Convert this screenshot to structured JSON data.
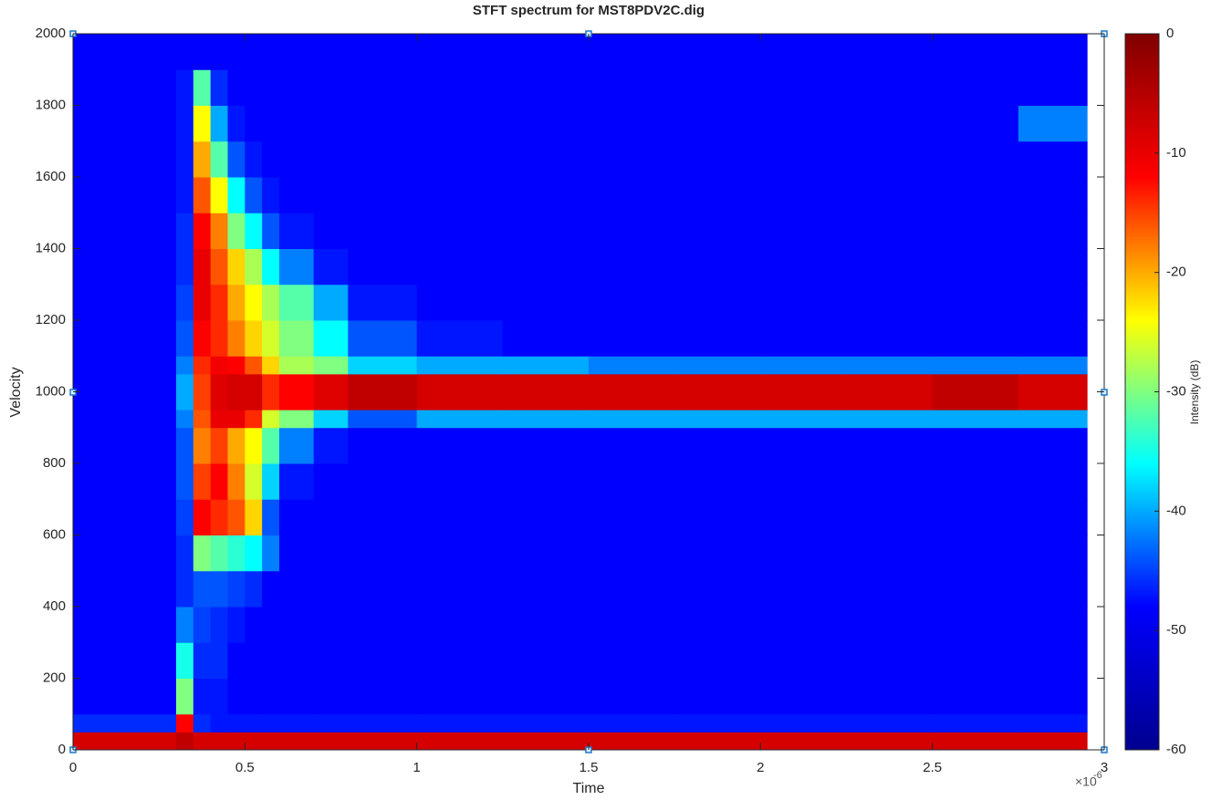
{
  "chart_data": {
    "type": "heatmap",
    "title": "STFT spectrum for MST8PDV2C.dig",
    "x_label": "Time",
    "y_label": "Velocity",
    "x_exponent": {
      "base": "×10",
      "power": "-6"
    },
    "xlim": [
      0,
      3
    ],
    "xticks": [
      0,
      0.5,
      1,
      1.5,
      2,
      2.5,
      3
    ],
    "ylim": [
      0,
      2000
    ],
    "yticks": [
      0,
      200,
      400,
      600,
      800,
      1000,
      1200,
      1400,
      1600,
      1800,
      2000
    ],
    "xbins": [
      0,
      0.3,
      0.35,
      0.4,
      0.45,
      0.5,
      0.55,
      0.6,
      0.7,
      0.8,
      1.0,
      1.25,
      1.5,
      1.75,
      2.0,
      2.25,
      2.5,
      2.75,
      2.95
    ],
    "ybins": [
      0,
      50,
      100,
      200,
      300,
      400,
      500,
      600,
      700,
      800,
      900,
      950,
      1050,
      1100,
      1200,
      1300,
      1400,
      1500,
      1600,
      1700,
      1800,
      1900,
      2000
    ],
    "z": [
      [
        -8,
        -6,
        -8,
        -8,
        -8,
        -8,
        -8,
        -8,
        -8,
        -8,
        -8,
        -8,
        -8,
        -8,
        -8,
        -8,
        -8,
        -8
      ],
      [
        -46,
        -12,
        -46,
        -47,
        -47,
        -47,
        -47,
        -47,
        -47,
        -47,
        -47,
        -47,
        -47,
        -47,
        -47,
        -47,
        -47,
        -47
      ],
      [
        -48,
        -30,
        -47,
        -47,
        -48,
        -48,
        -48,
        -48,
        -48,
        -48,
        -48,
        -48,
        -48,
        -48,
        -48,
        -48,
        -48,
        -48
      ],
      [
        -48,
        -35,
        -46,
        -46,
        -48,
        -48,
        -48,
        -48,
        -48,
        -48,
        -48,
        -48,
        -48,
        -48,
        -48,
        -48,
        -48,
        -48
      ],
      [
        -48,
        -42,
        -45,
        -46,
        -47,
        -48,
        -48,
        -48,
        -48,
        -48,
        -48,
        -48,
        -48,
        -48,
        -48,
        -48,
        -48,
        -48
      ],
      [
        -48,
        -46,
        -44,
        -44,
        -45,
        -46,
        -48,
        -48,
        -48,
        -48,
        -48,
        -48,
        -48,
        -48,
        -48,
        -48,
        -48,
        -48
      ],
      [
        -48,
        -46,
        -30,
        -32,
        -34,
        -36,
        -42,
        -48,
        -48,
        -48,
        -48,
        -48,
        -48,
        -48,
        -48,
        -48,
        -48,
        -48
      ],
      [
        -48,
        -45,
        -12,
        -14,
        -16,
        -22,
        -44,
        -48,
        -48,
        -48,
        -48,
        -48,
        -48,
        -48,
        -48,
        -48,
        -48,
        -48
      ],
      [
        -48,
        -44,
        -15,
        -12,
        -18,
        -26,
        -38,
        -47,
        -48,
        -48,
        -48,
        -48,
        -48,
        -48,
        -48,
        -48,
        -48,
        -48
      ],
      [
        -48,
        -44,
        -18,
        -15,
        -20,
        -24,
        -32,
        -42,
        -47,
        -48,
        -48,
        -48,
        -48,
        -48,
        -48,
        -48,
        -48,
        -48
      ],
      [
        -48,
        -42,
        -16,
        -10,
        -10,
        -14,
        -26,
        -30,
        -38,
        -44,
        -40,
        -40,
        -40,
        -40,
        -40,
        -40,
        -40,
        -40
      ],
      [
        -48,
        -40,
        -15,
        -9,
        -8,
        -8,
        -14,
        -12,
        -9,
        -6,
        -8,
        -8,
        -8,
        -8,
        -8,
        -8,
        -6,
        -8
      ],
      [
        -48,
        -42,
        -14,
        -11,
        -12,
        -16,
        -22,
        -28,
        -30,
        -38,
        -40,
        -40,
        -42,
        -42,
        -42,
        -42,
        -42,
        -42
      ],
      [
        -48,
        -44,
        -12,
        -14,
        -18,
        -22,
        -26,
        -30,
        -36,
        -44,
        -47,
        -48,
        -48,
        -48,
        -48,
        -48,
        -48,
        -48
      ],
      [
        -48,
        -45,
        -10,
        -14,
        -20,
        -24,
        -28,
        -32,
        -40,
        -47,
        -48,
        -48,
        -48,
        -48,
        -48,
        -48,
        -48,
        -48
      ],
      [
        -48,
        -46,
        -10,
        -16,
        -22,
        -28,
        -36,
        -42,
        -47,
        -48,
        -48,
        -48,
        -48,
        -48,
        -48,
        -48,
        -48,
        -48
      ],
      [
        -48,
        -46,
        -12,
        -18,
        -30,
        -36,
        -44,
        -47,
        -48,
        -48,
        -48,
        -48,
        -48,
        -48,
        -48,
        -48,
        -48,
        -48
      ],
      [
        -48,
        -47,
        -16,
        -24,
        -36,
        -44,
        -47,
        -48,
        -48,
        -48,
        -48,
        -48,
        -48,
        -48,
        -48,
        -48,
        -48,
        -48
      ],
      [
        -48,
        -47,
        -20,
        -32,
        -44,
        -47,
        -48,
        -48,
        -48,
        -48,
        -48,
        -48,
        -48,
        -48,
        -48,
        -48,
        -48,
        -48
      ],
      [
        -48,
        -47,
        -24,
        -40,
        -47,
        -48,
        -48,
        -48,
        -48,
        -48,
        -48,
        -48,
        -48,
        -48,
        -48,
        -48,
        -48,
        -42
      ],
      [
        -48,
        -47,
        -32,
        -46,
        -48,
        -48,
        -48,
        -48,
        -48,
        -48,
        -48,
        -48,
        -48,
        -48,
        -48,
        -48,
        -48,
        -48
      ],
      [
        -48,
        -48,
        -48,
        -48,
        -48,
        -48,
        -48,
        -48,
        -48,
        -48,
        -48,
        -48,
        -48,
        -48,
        -48,
        -48,
        -48,
        -48
      ]
    ],
    "colormap": [
      "#00008f",
      "#0000ff",
      "#00ffff",
      "#ffff00",
      "#ff0000",
      "#800000"
    ],
    "colorbar_label": "Intensity (dB)",
    "clim": [
      -60,
      0
    ],
    "cticks": [
      0,
      -10,
      -20,
      -30,
      -40,
      -50,
      -60
    ]
  }
}
